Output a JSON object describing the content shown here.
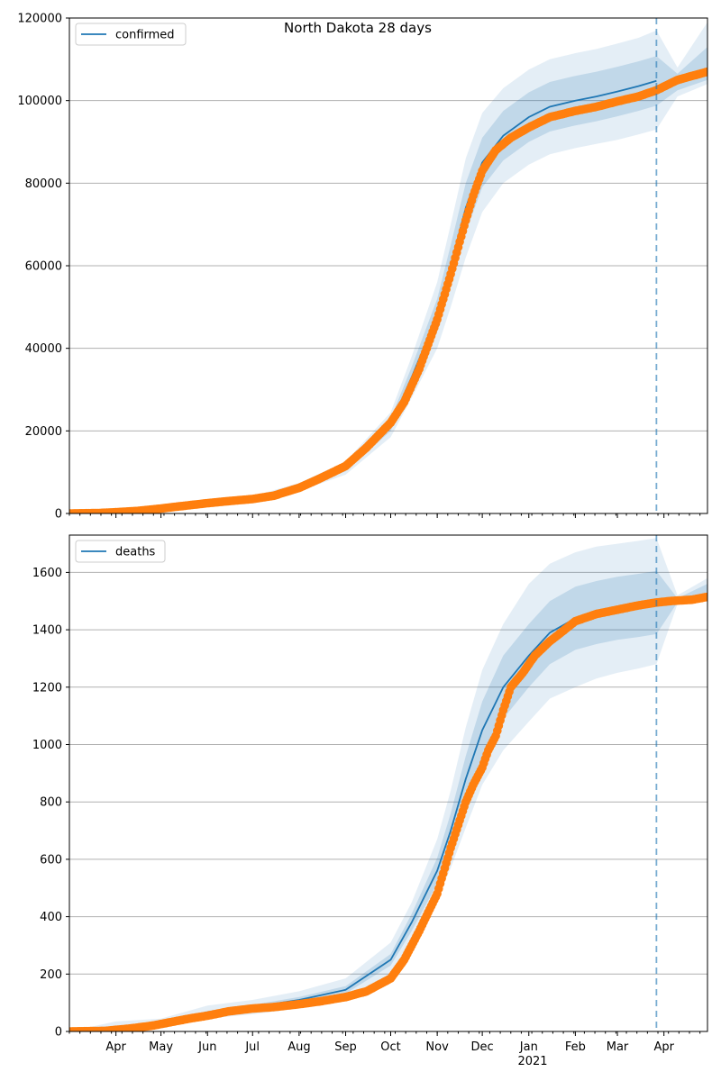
{
  "figure": {
    "title": "North Dakota 28 days"
  },
  "chart_data": [
    {
      "type": "line",
      "legend": {
        "label": "confirmed",
        "placement": "top-left"
      },
      "ylim": [
        0,
        120000
      ],
      "yticks": [
        0,
        20000,
        40000,
        60000,
        80000,
        100000,
        120000
      ],
      "xlim": [
        "2020-03-01",
        "2021-04-30"
      ],
      "grid": "horizontal",
      "forecast_start": "2021-03-27",
      "model": {
        "x": [
          "2020-03-01",
          "2020-04-01",
          "2020-05-01",
          "2020-06-01",
          "2020-07-01",
          "2020-08-01",
          "2020-09-01",
          "2020-10-01",
          "2020-10-15",
          "2020-11-01",
          "2020-11-10",
          "2020-11-20",
          "2020-12-01",
          "2020-12-15",
          "2021-01-01",
          "2021-01-15",
          "2021-02-01",
          "2021-02-15",
          "2021-03-01",
          "2021-03-15",
          "2021-03-27"
        ],
        "mean": [
          0,
          300,
          1200,
          2700,
          3600,
          6400,
          11000,
          21500,
          33000,
          48000,
          60000,
          74000,
          85000,
          91500,
          96000,
          98500,
          100000,
          101000,
          102200,
          103500,
          104800
        ],
        "band_inner": [
          [
            0,
            0
          ],
          [
            250,
            350
          ],
          [
            1100,
            1300
          ],
          [
            2500,
            2900
          ],
          [
            3300,
            3900
          ],
          [
            5900,
            6900
          ],
          [
            10200,
            11800
          ],
          [
            20000,
            23000
          ],
          [
            30500,
            35500
          ],
          [
            44000,
            52000
          ],
          [
            55000,
            65000
          ],
          [
            68000,
            80000
          ],
          [
            79000,
            91000
          ],
          [
            85500,
            97500
          ],
          [
            90000,
            102000
          ],
          [
            92500,
            104500
          ],
          [
            94000,
            106000
          ],
          [
            95000,
            107000
          ],
          [
            96200,
            108200
          ],
          [
            97500,
            109500
          ],
          [
            98800,
            110800
          ]
        ],
        "band_outer": [
          [
            0,
            0
          ],
          [
            200,
            400
          ],
          [
            900,
            1500
          ],
          [
            2200,
            3200
          ],
          [
            3000,
            4200
          ],
          [
            5400,
            7400
          ],
          [
            9400,
            12600
          ],
          [
            18500,
            24500
          ],
          [
            28000,
            38000
          ],
          [
            40000,
            56000
          ],
          [
            50000,
            70000
          ],
          [
            62000,
            86000
          ],
          [
            73000,
            97000
          ],
          [
            80000,
            103000
          ],
          [
            84500,
            107500
          ],
          [
            87000,
            110000
          ],
          [
            88500,
            111500
          ],
          [
            89500,
            112500
          ],
          [
            90500,
            113800
          ],
          [
            91800,
            115200
          ],
          [
            93000,
            117000
          ]
        ]
      },
      "forecast_extension": {
        "x": [
          "2021-03-27",
          "2021-04-10",
          "2021-04-30"
        ],
        "band_outer": [
          [
            93000,
            117000
          ],
          [
            101000,
            108000
          ],
          [
            104000,
            119000
          ]
        ],
        "band_inner": [
          [
            98800,
            110800
          ],
          [
            102500,
            106500
          ],
          [
            105000,
            113000
          ]
        ]
      },
      "observed": {
        "x": [
          "2020-03-01",
          "2020-03-20",
          "2020-04-01",
          "2020-04-15",
          "2020-05-01",
          "2020-05-15",
          "2020-06-01",
          "2020-06-15",
          "2020-07-01",
          "2020-07-15",
          "2020-08-01",
          "2020-08-15",
          "2020-09-01",
          "2020-09-15",
          "2020-10-01",
          "2020-10-10",
          "2020-10-20",
          "2020-11-01",
          "2020-11-10",
          "2020-11-15",
          "2020-11-20",
          "2020-11-25",
          "2020-12-01",
          "2020-12-10",
          "2020-12-20",
          "2021-01-01",
          "2021-01-15",
          "2021-02-01",
          "2021-02-15",
          "2021-03-01",
          "2021-03-15",
          "2021-03-27",
          "2021-04-10",
          "2021-04-30"
        ],
        "y": [
          0,
          100,
          300,
          600,
          1200,
          1800,
          2500,
          3000,
          3500,
          4300,
          6200,
          8500,
          11500,
          16000,
          22000,
          27000,
          35000,
          47000,
          58000,
          64500,
          71000,
          77000,
          83000,
          88000,
          91000,
          93500,
          96000,
          97500,
          98500,
          99800,
          101000,
          102500,
          105000,
          107000
        ]
      }
    },
    {
      "type": "line",
      "legend": {
        "label": "deaths",
        "placement": "top-left"
      },
      "ylim": [
        0,
        1730
      ],
      "yticks": [
        0,
        200,
        400,
        600,
        800,
        1000,
        1200,
        1400,
        1600
      ],
      "xlim": [
        "2020-03-01",
        "2021-04-30"
      ],
      "x_ticks": [
        "Apr",
        "May",
        "Jun",
        "Jul",
        "Aug",
        "Sep",
        "Oct",
        "Nov",
        "Dec",
        "Jan",
        "Feb",
        "Mar",
        "Apr"
      ],
      "x_tick_dates": [
        "2020-04-01",
        "2020-05-01",
        "2020-06-01",
        "2020-07-01",
        "2020-08-01",
        "2020-09-01",
        "2020-10-01",
        "2020-11-01",
        "2020-12-01",
        "2021-01-01",
        "2021-02-01",
        "2021-03-01",
        "2021-04-01"
      ],
      "x_year_label": "2021",
      "grid": "horizontal",
      "forecast_start": "2021-03-27",
      "model": {
        "x": [
          "2020-03-01",
          "2020-04-01",
          "2020-05-01",
          "2020-06-01",
          "2020-07-01",
          "2020-08-01",
          "2020-09-01",
          "2020-10-01",
          "2020-10-15",
          "2020-11-01",
          "2020-11-10",
          "2020-11-20",
          "2020-12-01",
          "2020-12-15",
          "2021-01-01",
          "2021-01-15",
          "2021-02-01",
          "2021-02-15",
          "2021-03-01",
          "2021-03-15",
          "2021-03-27"
        ],
        "mean": [
          0,
          5,
          25,
          65,
          85,
          110,
          145,
          250,
          380,
          560,
          700,
          880,
          1050,
          1200,
          1310,
          1390,
          1440,
          1460,
          1475,
          1485,
          1495
        ],
        "band_inner": [
          [
            0,
            0
          ],
          [
            3,
            7
          ],
          [
            20,
            30
          ],
          [
            58,
            72
          ],
          [
            77,
            93
          ],
          [
            100,
            120
          ],
          [
            132,
            158
          ],
          [
            230,
            270
          ],
          [
            350,
            410
          ],
          [
            515,
            605
          ],
          [
            640,
            760
          ],
          [
            800,
            960
          ],
          [
            950,
            1150
          ],
          [
            1090,
            1310
          ],
          [
            1200,
            1420
          ],
          [
            1280,
            1500
          ],
          [
            1330,
            1550
          ],
          [
            1350,
            1570
          ],
          [
            1365,
            1585
          ],
          [
            1375,
            1595
          ],
          [
            1385,
            1605
          ]
        ],
        "band_outer": [
          [
            0,
            0
          ],
          [
            0,
            35
          ],
          [
            10,
            45
          ],
          [
            45,
            90
          ],
          [
            60,
            110
          ],
          [
            80,
            140
          ],
          [
            110,
            185
          ],
          [
            200,
            310
          ],
          [
            320,
            450
          ],
          [
            460,
            670
          ],
          [
            570,
            840
          ],
          [
            710,
            1060
          ],
          [
            860,
            1260
          ],
          [
            980,
            1420
          ],
          [
            1080,
            1560
          ],
          [
            1160,
            1630
          ],
          [
            1200,
            1670
          ],
          [
            1230,
            1690
          ],
          [
            1250,
            1700
          ],
          [
            1265,
            1710
          ],
          [
            1280,
            1720
          ]
        ]
      },
      "forecast_extension": {
        "x": [
          "2021-03-27",
          "2021-04-10",
          "2021-04-30"
        ],
        "band_outer": [
          [
            1280,
            1720
          ],
          [
            1490,
            1520
          ],
          [
            1500,
            1580
          ]
        ],
        "band_inner": [
          [
            1385,
            1605
          ],
          [
            1495,
            1510
          ],
          [
            1505,
            1560
          ]
        ]
      },
      "observed": {
        "x": [
          "2020-03-01",
          "2020-03-25",
          "2020-04-10",
          "2020-04-25",
          "2020-05-05",
          "2020-05-20",
          "2020-06-01",
          "2020-06-15",
          "2020-07-01",
          "2020-07-15",
          "2020-08-01",
          "2020-08-15",
          "2020-09-01",
          "2020-09-15",
          "2020-10-01",
          "2020-10-10",
          "2020-10-20",
          "2020-11-01",
          "2020-11-10",
          "2020-11-20",
          "2020-11-25",
          "2020-12-01",
          "2020-12-05",
          "2020-12-10",
          "2020-12-15",
          "2020-12-20",
          "2020-12-28",
          "2021-01-05",
          "2021-01-15",
          "2021-01-20",
          "2021-02-01",
          "2021-02-15",
          "2021-03-01",
          "2021-03-15",
          "2021-03-27",
          "2021-04-05",
          "2021-04-20",
          "2021-04-30"
        ],
        "y": [
          0,
          2,
          10,
          20,
          30,
          45,
          55,
          70,
          80,
          85,
          95,
          105,
          120,
          140,
          185,
          250,
          350,
          480,
          640,
          800,
          860,
          920,
          980,
          1030,
          1120,
          1200,
          1250,
          1310,
          1360,
          1380,
          1430,
          1455,
          1470,
          1485,
          1495,
          1500,
          1505,
          1515
        ]
      }
    }
  ]
}
